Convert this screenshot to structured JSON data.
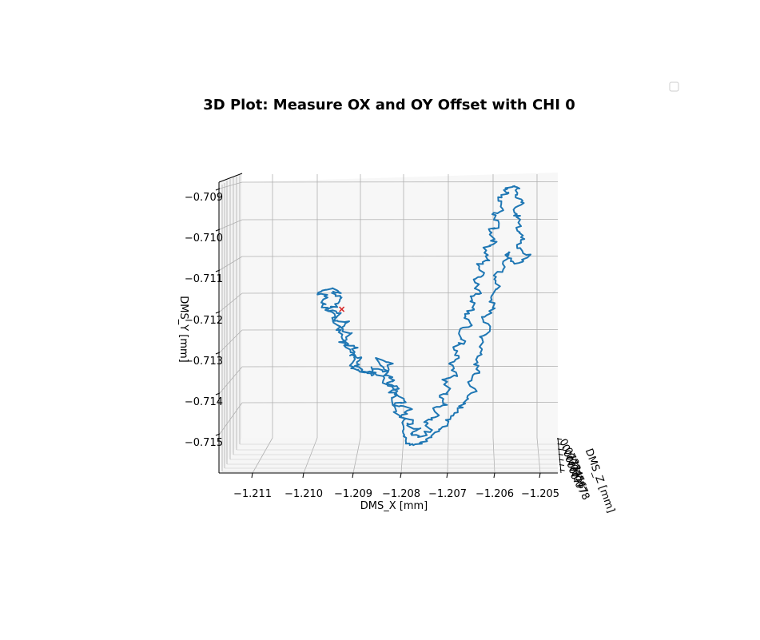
{
  "chart_data": {
    "type": "line",
    "title": "3D Plot: Measure OX and OY Offset with CHI 0",
    "xlabel": "DMS_X [mm]",
    "ylabel": "DMS_Y [mm]",
    "zlabel": "DMS_Z [mm]",
    "x_ticks": [
      "−1.211",
      "−1.210",
      "−1.209",
      "−1.208",
      "−1.207",
      "−1.206",
      "−1.205"
    ],
    "y_ticks": [
      "−0.709",
      "−0.710",
      "−0.711",
      "−0.712",
      "−0.713",
      "−0.714",
      "−0.715"
    ],
    "z_ticks": [
      "0.072",
      "0.073",
      "0.074",
      "0.075",
      "0.076",
      "0.077",
      "0.078"
    ],
    "xlim": [
      -1.2115,
      -1.2046
    ],
    "ylim": [
      -0.7158,
      -0.7087
    ],
    "grid": true,
    "legend": "top-right, empty",
    "line_color": "#1f77b4",
    "marker_color": "#d62728",
    "marker": {
      "x": -1.209,
      "y": -0.712
    },
    "path": [
      [
        -1.2092,
        -0.7116
      ],
      [
        -1.209,
        -0.7117
      ],
      [
        -1.2091,
        -0.7119
      ],
      [
        -1.2093,
        -0.712
      ],
      [
        -1.209,
        -0.7121
      ],
      [
        -1.2092,
        -0.7123
      ],
      [
        -1.2089,
        -0.7123
      ],
      [
        -1.209,
        -0.7125
      ],
      [
        -1.2088,
        -0.7126
      ],
      [
        -1.209,
        -0.7128
      ],
      [
        -1.2087,
        -0.7129
      ],
      [
        -1.2088,
        -0.7131
      ],
      [
        -1.2086,
        -0.7132
      ],
      [
        -1.2087,
        -0.7134
      ],
      [
        -1.2085,
        -0.7135
      ],
      [
        -1.2083,
        -0.7136
      ],
      [
        -1.2084,
        -0.7134
      ],
      [
        -1.2081,
        -0.7135
      ],
      [
        -1.2083,
        -0.7132
      ],
      [
        -1.208,
        -0.7133
      ],
      [
        -1.2081,
        -0.7136
      ],
      [
        -1.2079,
        -0.7137
      ],
      [
        -1.2081,
        -0.7138
      ],
      [
        -1.2078,
        -0.7139
      ],
      [
        -1.208,
        -0.714
      ],
      [
        -1.2077,
        -0.7142
      ],
      [
        -1.2079,
        -0.7143
      ],
      [
        -1.2076,
        -0.7144
      ],
      [
        -1.2078,
        -0.7146
      ],
      [
        -1.2075,
        -0.7147
      ],
      [
        -1.2077,
        -0.7148
      ],
      [
        -1.2074,
        -0.7149
      ],
      [
        -1.2076,
        -0.715
      ],
      [
        -1.2074,
        -0.7151
      ],
      [
        -1.2072,
        -0.7149
      ],
      [
        -1.2073,
        -0.7147
      ],
      [
        -1.207,
        -0.7146
      ],
      [
        -1.2071,
        -0.7144
      ],
      [
        -1.2069,
        -0.7143
      ],
      [
        -1.207,
        -0.7141
      ],
      [
        -1.2068,
        -0.714
      ],
      [
        -1.2069,
        -0.7137
      ],
      [
        -1.2067,
        -0.7136
      ],
      [
        -1.2068,
        -0.7133
      ],
      [
        -1.2066,
        -0.7132
      ],
      [
        -1.2067,
        -0.7129
      ],
      [
        -1.2065,
        -0.7128
      ],
      [
        -1.2066,
        -0.7125
      ],
      [
        -1.2064,
        -0.7124
      ],
      [
        -1.2065,
        -0.7121
      ],
      [
        -1.2063,
        -0.712
      ],
      [
        -1.2064,
        -0.7117
      ],
      [
        -1.2062,
        -0.7116
      ],
      [
        -1.2063,
        -0.7113
      ],
      [
        -1.2061,
        -0.7112
      ],
      [
        -1.2062,
        -0.7109
      ],
      [
        -1.206,
        -0.7108
      ],
      [
        -1.2061,
        -0.7105
      ],
      [
        -1.2059,
        -0.7104
      ],
      [
        -1.206,
        -0.7101
      ],
      [
        -1.2058,
        -0.71
      ],
      [
        -1.2059,
        -0.7097
      ],
      [
        -1.2057,
        -0.7096
      ],
      [
        -1.2058,
        -0.7093
      ],
      [
        -1.2056,
        -0.7092
      ],
      [
        -1.2057,
        -0.7091
      ],
      [
        -1.2055,
        -0.709
      ],
      [
        -1.2054,
        -0.7091
      ],
      [
        -1.2055,
        -0.7093
      ],
      [
        -1.2053,
        -0.7094
      ],
      [
        -1.2055,
        -0.7096
      ],
      [
        -1.2054,
        -0.7098
      ],
      [
        -1.2054,
        -0.7101
      ],
      [
        -1.2053,
        -0.7103
      ],
      [
        -1.2054,
        -0.7105
      ],
      [
        -1.2052,
        -0.7107
      ],
      [
        -1.2054,
        -0.7109
      ],
      [
        -1.2056,
        -0.7108
      ],
      [
        -1.2056,
        -0.7106
      ],
      [
        -1.2057,
        -0.711
      ],
      [
        -1.2059,
        -0.7112
      ],
      [
        -1.2058,
        -0.7115
      ],
      [
        -1.206,
        -0.7117
      ],
      [
        -1.2059,
        -0.712
      ],
      [
        -1.2061,
        -0.7122
      ],
      [
        -1.206,
        -0.7125
      ],
      [
        -1.2062,
        -0.7127
      ],
      [
        -1.2061,
        -0.713
      ],
      [
        -1.2063,
        -0.7132
      ],
      [
        -1.2062,
        -0.7135
      ],
      [
        -1.2064,
        -0.7137
      ],
      [
        -1.2063,
        -0.714
      ],
      [
        -1.2065,
        -0.7142
      ],
      [
        -1.2066,
        -0.7144
      ],
      [
        -1.2068,
        -0.7146
      ],
      [
        -1.2069,
        -0.7148
      ],
      [
        -1.2071,
        -0.715
      ],
      [
        -1.2073,
        -0.7152
      ],
      [
        -1.2075,
        -0.7153
      ],
      [
        -1.2077,
        -0.7152
      ],
      [
        -1.2078,
        -0.715
      ],
      [
        -1.2077,
        -0.7147
      ],
      [
        -1.2079,
        -0.7145
      ],
      [
        -1.208,
        -0.7142
      ],
      [
        -1.2079,
        -0.714
      ],
      [
        -1.2081,
        -0.7138
      ],
      [
        -1.2082,
        -0.7136
      ],
      [
        -1.2084,
        -0.7135
      ],
      [
        -1.2086,
        -0.7135
      ],
      [
        -1.2088,
        -0.7134
      ],
      [
        -1.2087,
        -0.7131
      ],
      [
        -1.2089,
        -0.7129
      ],
      [
        -1.209,
        -0.7126
      ],
      [
        -1.2091,
        -0.7124
      ],
      [
        -1.2092,
        -0.7121
      ],
      [
        -1.2094,
        -0.7119
      ],
      [
        -1.2093,
        -0.7117
      ],
      [
        -1.2095,
        -0.7116
      ],
      [
        -1.2092,
        -0.7115
      ],
      [
        -1.209,
        -0.7116
      ]
    ]
  }
}
